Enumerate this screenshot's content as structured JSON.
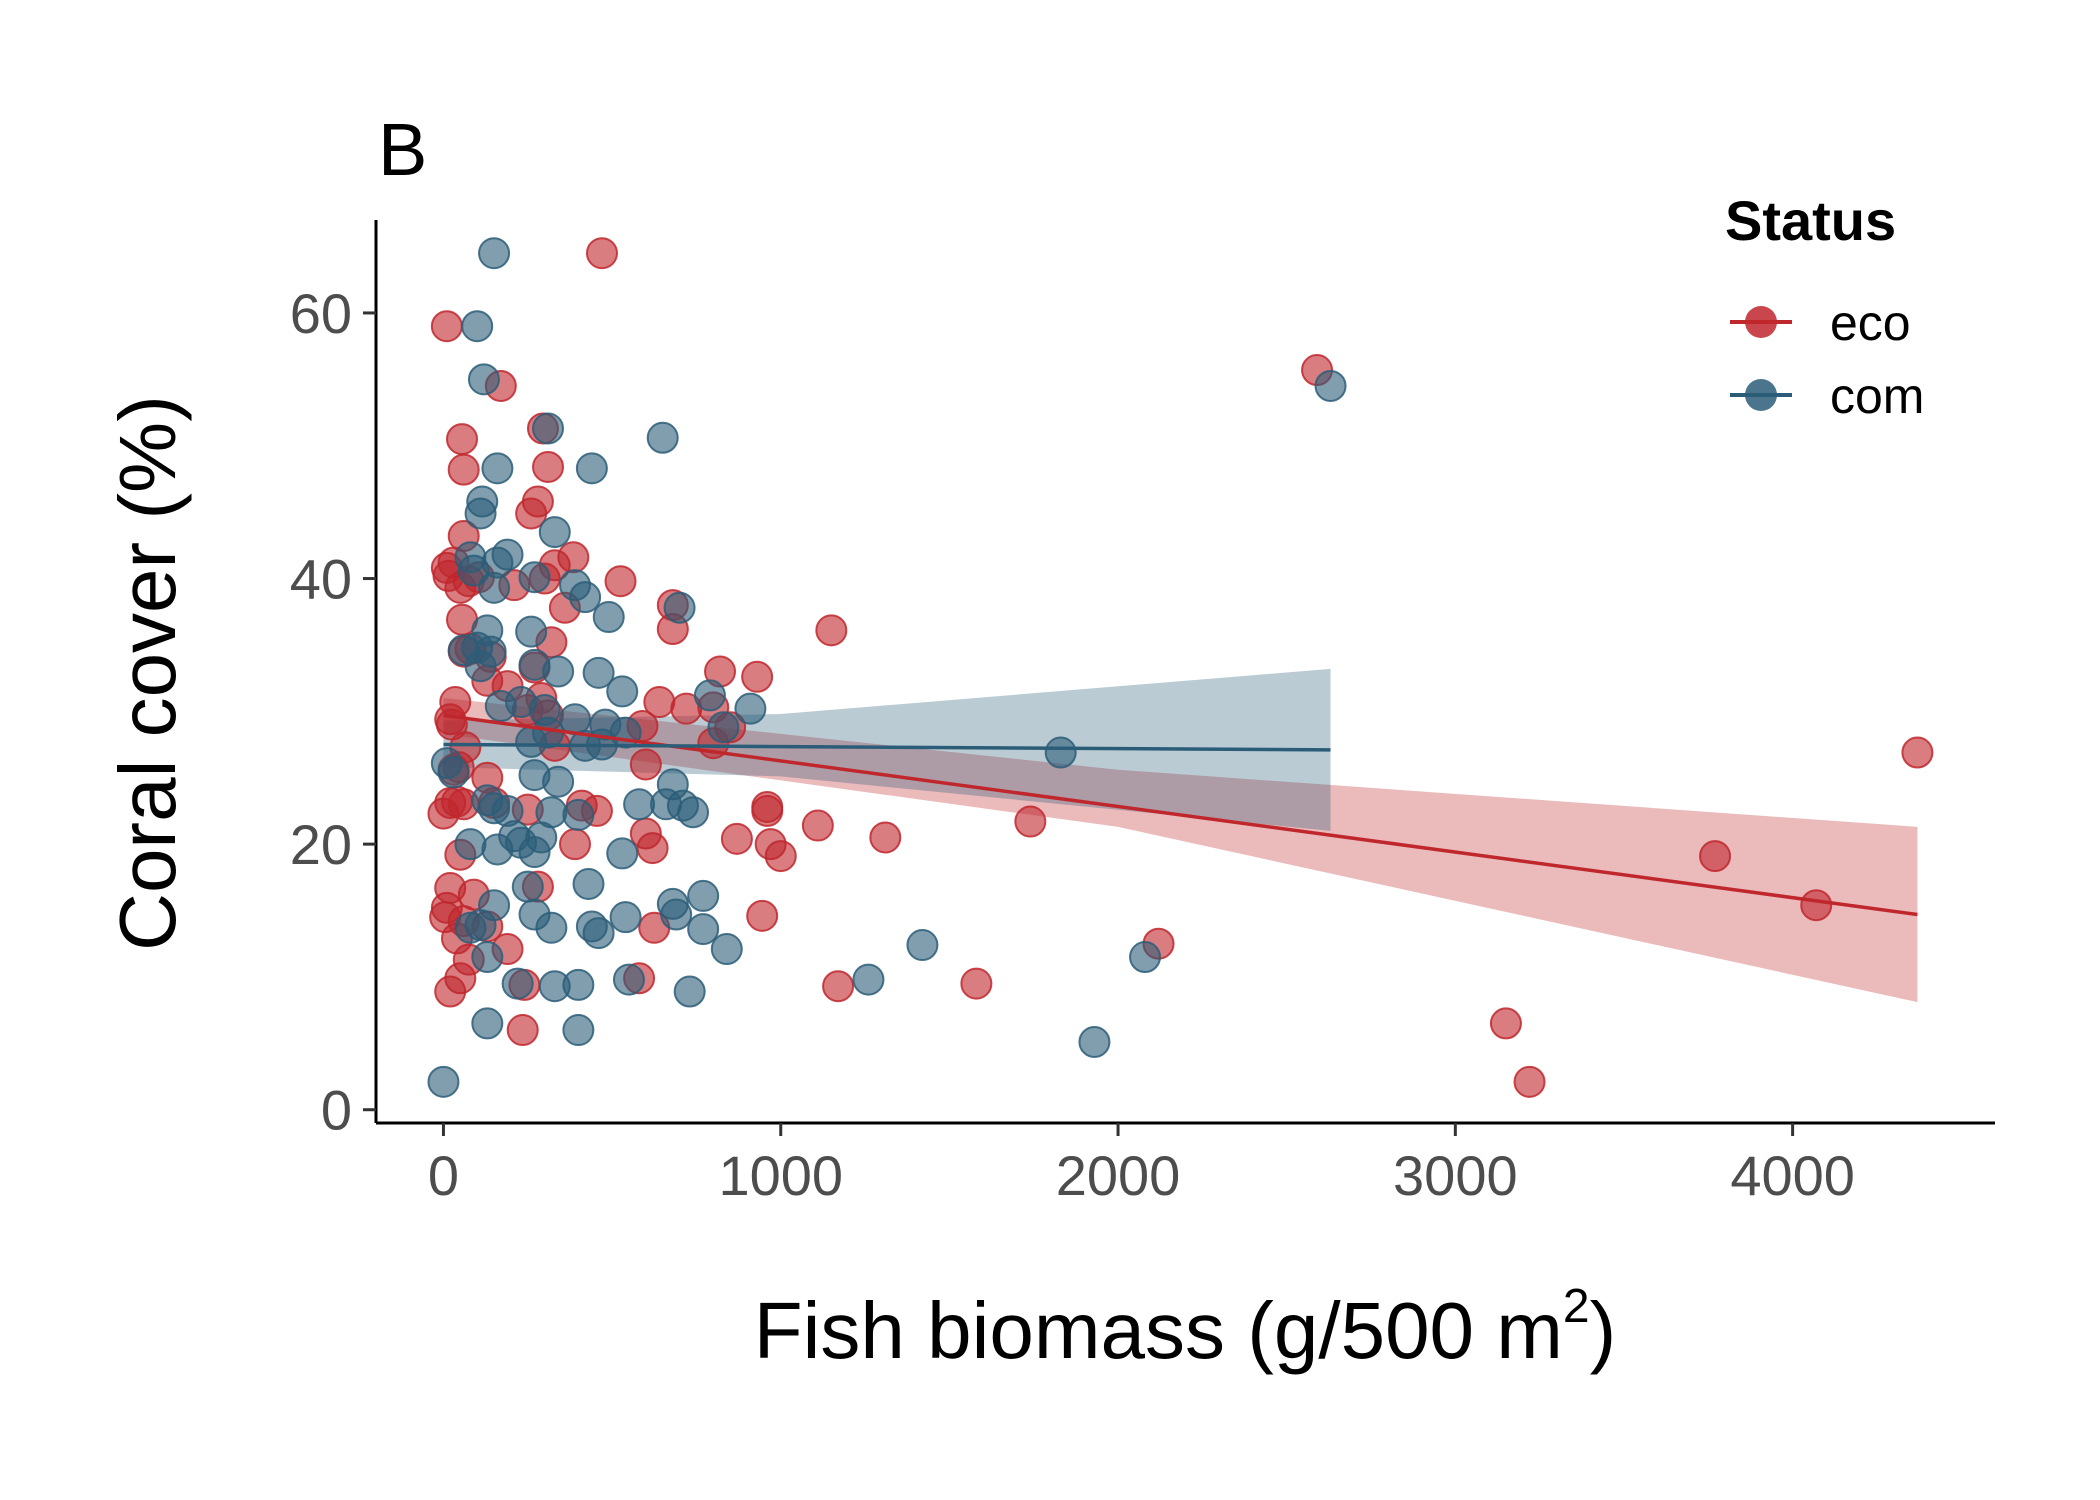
{
  "chart_data": {
    "type": "scatter",
    "panel_label": "B",
    "xlabel": "Fish biomass (g/500 m",
    "xlabel_sup": "2",
    "xlabel_end": ")",
    "ylabel": "Coral cover (%)",
    "xlim": [
      -200,
      4600
    ],
    "ylim": [
      -1,
      67
    ],
    "x_ticks": [
      0,
      1000,
      2000,
      3000,
      4000
    ],
    "x_tick_labels": [
      "0",
      "1000",
      "2000",
      "3000",
      "4000"
    ],
    "y_ticks": [
      0,
      20,
      40,
      60
    ],
    "y_tick_labels": [
      "0",
      "20",
      "40",
      "60"
    ],
    "grid": false,
    "legend": {
      "title": "Status",
      "position": "top-right",
      "entries": [
        "eco",
        "com"
      ]
    },
    "colors": {
      "eco": "#c0272d",
      "com": "#2b5d78"
    },
    "series": [
      {
        "name": "eco",
        "color": "#c0272d",
        "points": [
          [
            470,
            64.5
          ],
          [
            10,
            59
          ],
          [
            170,
            54.5
          ],
          [
            2590,
            55.7
          ],
          [
            55,
            50.5
          ],
          [
            295,
            51.3
          ],
          [
            60,
            48.2
          ],
          [
            310,
            48.4
          ],
          [
            280,
            45.8
          ],
          [
            260,
            44.9
          ],
          [
            60,
            43.2
          ],
          [
            10,
            40.8
          ],
          [
            30,
            41.2
          ],
          [
            15,
            40.2
          ],
          [
            50,
            39.3
          ],
          [
            75,
            39.8
          ],
          [
            105,
            40.1
          ],
          [
            385,
            41.6
          ],
          [
            330,
            41.0
          ],
          [
            300,
            40.0
          ],
          [
            210,
            39.5
          ],
          [
            525,
            39.8
          ],
          [
            360,
            37.8
          ],
          [
            55,
            36.9
          ],
          [
            80,
            34.7
          ],
          [
            60,
            34.5
          ],
          [
            140,
            34.1
          ],
          [
            320,
            35.2
          ],
          [
            680,
            38.0
          ],
          [
            680,
            36.2
          ],
          [
            1150,
            36.1
          ],
          [
            130,
            32.3
          ],
          [
            190,
            31.9
          ],
          [
            250,
            30.1
          ],
          [
            35,
            30.7
          ],
          [
            20,
            29.4
          ],
          [
            25,
            29.0
          ],
          [
            45,
            25.8
          ],
          [
            65,
            27.3
          ],
          [
            270,
            33.3
          ],
          [
            290,
            31.0
          ],
          [
            310,
            29.7
          ],
          [
            330,
            27.4
          ],
          [
            640,
            30.7
          ],
          [
            720,
            30.2
          ],
          [
            800,
            30.3
          ],
          [
            820,
            33.0
          ],
          [
            930,
            32.6
          ],
          [
            590,
            28.9
          ],
          [
            600,
            26.0
          ],
          [
            800,
            27.6
          ],
          [
            850,
            28.8
          ],
          [
            0,
            22.3
          ],
          [
            20,
            23.1
          ],
          [
            40,
            23.2
          ],
          [
            60,
            23.0
          ],
          [
            30,
            25.6
          ],
          [
            130,
            25.0
          ],
          [
            150,
            23.1
          ],
          [
            250,
            22.6
          ],
          [
            410,
            22.9
          ],
          [
            455,
            22.5
          ],
          [
            390,
            20.0
          ],
          [
            600,
            20.8
          ],
          [
            620,
            19.7
          ],
          [
            960,
            22.5
          ],
          [
            960,
            22.8
          ],
          [
            970,
            20.0
          ],
          [
            1000,
            19.1
          ],
          [
            870,
            20.4
          ],
          [
            1110,
            21.4
          ],
          [
            1310,
            20.5
          ],
          [
            1740,
            21.7
          ],
          [
            50,
            19.2
          ],
          [
            20,
            16.7
          ],
          [
            10,
            15.2
          ],
          [
            5,
            14.5
          ],
          [
            60,
            14.2
          ],
          [
            90,
            16.2
          ],
          [
            130,
            13.8
          ],
          [
            40,
            12.9
          ],
          [
            75,
            11.3
          ],
          [
            190,
            12.1
          ],
          [
            280,
            16.8
          ],
          [
            625,
            13.7
          ],
          [
            945,
            14.6
          ],
          [
            50,
            9.9
          ],
          [
            20,
            8.9
          ],
          [
            240,
            9.4
          ],
          [
            580,
            9.9
          ],
          [
            1170,
            9.3
          ],
          [
            1580,
            9.5
          ],
          [
            2120,
            12.5
          ],
          [
            235,
            6.0
          ],
          [
            3150,
            6.5
          ],
          [
            3220,
            2.1
          ],
          [
            3770,
            19.1
          ],
          [
            4070,
            15.4
          ],
          [
            4370,
            26.9
          ]
        ]
      },
      {
        "name": "com",
        "color": "#2b5d78",
        "points": [
          [
            150,
            64.5
          ],
          [
            100,
            59.0
          ],
          [
            120,
            55.0
          ],
          [
            2630,
            54.5
          ],
          [
            310,
            51.3
          ],
          [
            650,
            50.6
          ],
          [
            160,
            48.3
          ],
          [
            440,
            48.3
          ],
          [
            115,
            45.8
          ],
          [
            110,
            44.9
          ],
          [
            330,
            43.5
          ],
          [
            80,
            41.6
          ],
          [
            160,
            41.2
          ],
          [
            190,
            41.8
          ],
          [
            270,
            40.1
          ],
          [
            90,
            40.6
          ],
          [
            150,
            39.3
          ],
          [
            390,
            39.5
          ],
          [
            420,
            38.6
          ],
          [
            490,
            37.1
          ],
          [
            700,
            37.8
          ],
          [
            130,
            36.1
          ],
          [
            100,
            34.8
          ],
          [
            140,
            34.5
          ],
          [
            60,
            34.6
          ],
          [
            110,
            33.4
          ],
          [
            260,
            36.0
          ],
          [
            270,
            33.5
          ],
          [
            340,
            33.0
          ],
          [
            460,
            32.9
          ],
          [
            530,
            31.5
          ],
          [
            790,
            31.2
          ],
          [
            910,
            30.2
          ],
          [
            170,
            30.4
          ],
          [
            230,
            30.7
          ],
          [
            300,
            30.1
          ],
          [
            390,
            29.4
          ],
          [
            480,
            29.0
          ],
          [
            540,
            28.4
          ],
          [
            830,
            28.8
          ],
          [
            260,
            27.7
          ],
          [
            310,
            28.4
          ],
          [
            420,
            27.4
          ],
          [
            470,
            27.5
          ],
          [
            10,
            26.1
          ],
          [
            30,
            25.4
          ],
          [
            270,
            25.2
          ],
          [
            340,
            24.7
          ],
          [
            680,
            24.5
          ],
          [
            660,
            23.0
          ],
          [
            710,
            22.9
          ],
          [
            740,
            22.4
          ],
          [
            580,
            23.0
          ],
          [
            130,
            23.3
          ],
          [
            150,
            22.7
          ],
          [
            190,
            22.5
          ],
          [
            210,
            20.6
          ],
          [
            230,
            20.1
          ],
          [
            290,
            20.5
          ],
          [
            320,
            22.4
          ],
          [
            400,
            22.2
          ],
          [
            530,
            19.3
          ],
          [
            80,
            20.0
          ],
          [
            160,
            19.6
          ],
          [
            270,
            19.4
          ],
          [
            430,
            17.0
          ],
          [
            250,
            16.8
          ],
          [
            150,
            15.4
          ],
          [
            110,
            13.9
          ],
          [
            80,
            13.7
          ],
          [
            270,
            14.7
          ],
          [
            320,
            13.7
          ],
          [
            440,
            13.8
          ],
          [
            460,
            13.3
          ],
          [
            540,
            14.5
          ],
          [
            680,
            15.5
          ],
          [
            690,
            14.7
          ],
          [
            770,
            16.1
          ],
          [
            770,
            13.6
          ],
          [
            840,
            12.1
          ],
          [
            1420,
            12.4
          ],
          [
            2080,
            11.5
          ],
          [
            130,
            11.5
          ],
          [
            220,
            9.5
          ],
          [
            330,
            9.3
          ],
          [
            400,
            9.4
          ],
          [
            550,
            9.8
          ],
          [
            730,
            8.9
          ],
          [
            1260,
            9.8
          ],
          [
            130,
            6.5
          ],
          [
            400,
            6.0
          ],
          [
            1930,
            5.1
          ],
          [
            0,
            2.1
          ],
          [
            1830,
            26.9
          ]
        ]
      }
    ],
    "fits": [
      {
        "name": "eco",
        "color": "#c0272d",
        "x": [
          0,
          4370
        ],
        "y": [
          29.7,
          14.7
        ],
        "ci_x": [
          0,
          2000,
          4370
        ],
        "ci_upper": [
          31.0,
          25.6,
          21.3
        ],
        "ci_lower": [
          28.3,
          21.3,
          8.1
        ]
      },
      {
        "name": "com",
        "color": "#2b5d78",
        "x": [
          0,
          2630
        ],
        "y": [
          27.5,
          27.1
        ],
        "ci_x": [
          0,
          1000,
          2630
        ],
        "ci_upper": [
          29.3,
          29.8,
          33.2
        ],
        "ci_lower": [
          25.8,
          25.1,
          21.0
        ]
      }
    ]
  }
}
